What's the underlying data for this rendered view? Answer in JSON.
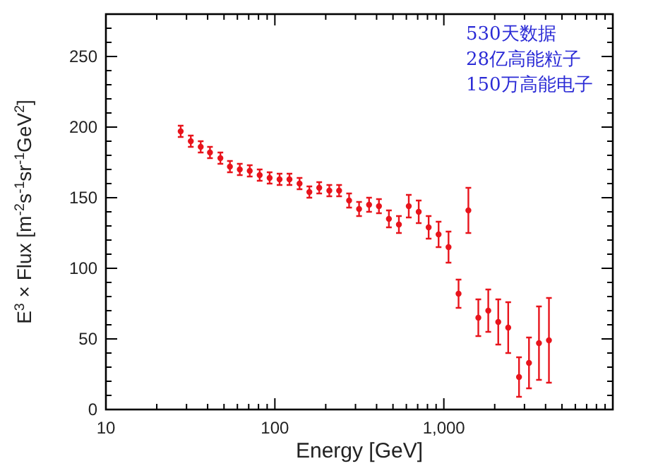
{
  "chart_data": {
    "type": "scatter",
    "xlabel": "Energy [GeV]",
    "ylabel": "E$^{3}$ × Flux [m$^{-2}$s$^{-1}$sr$^{-1}$GeV$^{2}$]",
    "annotations": [
      "530天数据",
      "28亿高能粒子",
      "150万高能电子"
    ],
    "log": "x",
    "xlim": [
      10,
      10000
    ],
    "xticks": [
      10,
      {
        "value": 20,
        "label": null
      },
      {
        "value": 30,
        "label": null
      },
      {
        "value": 40,
        "label": null
      },
      {
        "value": 50,
        "label": null
      },
      {
        "value": 60,
        "label": null
      },
      {
        "value": 70,
        "label": null
      },
      {
        "value": 80,
        "label": null
      },
      {
        "value": 90,
        "label": null
      },
      100,
      {
        "value": 200,
        "label": null
      },
      {
        "value": 300,
        "label": null
      },
      {
        "value": 400,
        "label": null
      },
      {
        "value": 500,
        "label": null
      },
      {
        "value": 600,
        "label": null
      },
      {
        "value": 700,
        "label": null
      },
      {
        "value": 800,
        "label": null
      },
      {
        "value": 900,
        "label": null
      },
      {
        "value": 1000,
        "label": "1,000"
      },
      {
        "value": 2000,
        "label": null
      },
      {
        "value": 3000,
        "label": null
      },
      {
        "value": 4000,
        "label": null
      },
      {
        "value": 5000,
        "label": null
      },
      {
        "value": 6000,
        "label": null
      },
      {
        "value": 7000,
        "label": null
      },
      {
        "value": 8000,
        "label": null
      },
      {
        "value": 9000,
        "label": null
      }
    ],
    "ylim": [
      0,
      280
    ],
    "yticks": [
      0,
      {
        "value": 10,
        "label": null
      },
      {
        "value": 20,
        "label": null
      },
      {
        "value": 30,
        "label": null
      },
      {
        "value": 40,
        "label": null
      },
      50,
      {
        "value": 60,
        "label": null
      },
      {
        "value": 70,
        "label": null
      },
      {
        "value": 80,
        "label": null
      },
      {
        "value": 90,
        "label": null
      },
      100,
      {
        "value": 110,
        "label": null
      },
      {
        "value": 120,
        "label": null
      },
      {
        "value": 130,
        "label": null
      },
      {
        "value": 140,
        "label": null
      },
      150,
      {
        "value": 160,
        "label": null
      },
      {
        "value": 170,
        "label": null
      },
      {
        "value": 180,
        "label": null
      },
      {
        "value": 190,
        "label": null
      },
      200,
      {
        "value": 210,
        "label": null
      },
      {
        "value": 220,
        "label": null
      },
      {
        "value": 230,
        "label": null
      },
      {
        "value": 240,
        "label": null
      },
      250,
      {
        "value": 260,
        "label": null
      },
      {
        "value": 270,
        "label": null
      }
    ],
    "grid": false,
    "marker": "circle",
    "series": [
      {
        "color": "#e8141c",
        "x": [
          27.7,
          31.8,
          36.4,
          41.3,
          47.6,
          54.2,
          62.0,
          71.0,
          81.3,
          93.1,
          106.6,
          122,
          140,
          160,
          183,
          210,
          240,
          275,
          315,
          361,
          413,
          473,
          542,
          620,
          710,
          813,
          931,
          1066,
          1222,
          1397,
          1600,
          1832,
          2099,
          2404,
          2786,
          3191,
          3656,
          4188
        ],
        "values": [
          197,
          190,
          186,
          182,
          178,
          172,
          170,
          169,
          166,
          164,
          163,
          163,
          160,
          154,
          157,
          155,
          155,
          148,
          142,
          145,
          144,
          135,
          131,
          144,
          140,
          129,
          124,
          115,
          82,
          141,
          65,
          70,
          62,
          58,
          23,
          33,
          47,
          49
        ],
        "errors": [
          4,
          4,
          4,
          4,
          4,
          4,
          4,
          4,
          4,
          4,
          4,
          4,
          4,
          4,
          4,
          4,
          4,
          5,
          5,
          5,
          5,
          6,
          6,
          8,
          8,
          8,
          9,
          11,
          10,
          16,
          13,
          15,
          16,
          18,
          14,
          18,
          26,
          30
        ]
      }
    ]
  }
}
